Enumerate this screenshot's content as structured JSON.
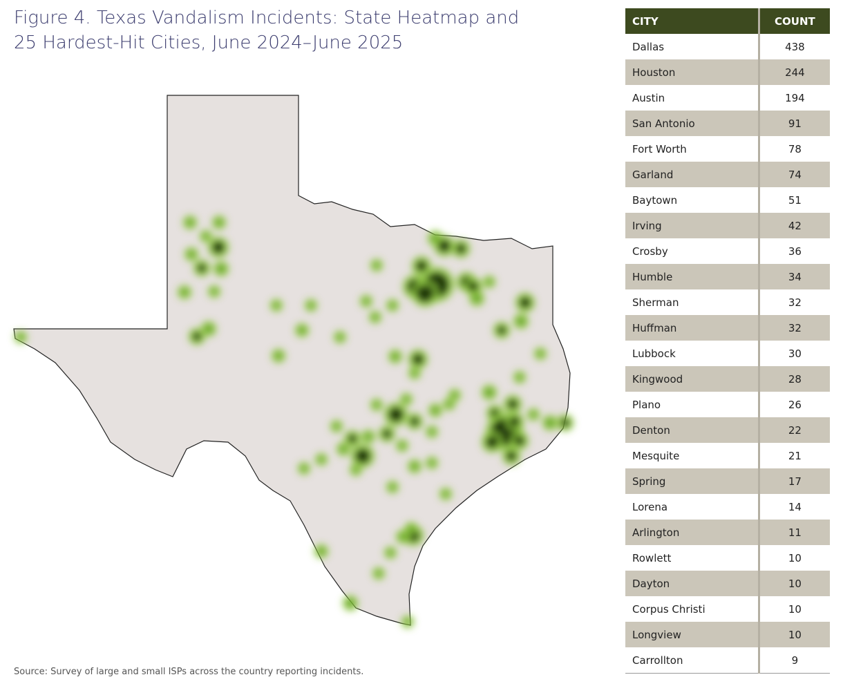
{
  "header": {
    "title_line1": "Figure 4.  Texas Vandalism Incidents: State Heatmap and",
    "title_line2": "25 Hardest-Hit Cities, June 2024–June 2025"
  },
  "source": "Source: Survey of large and small ISPs across the country reporting incidents.",
  "table": {
    "columns": [
      "CITY",
      "COUNT"
    ],
    "rows": [
      [
        "Dallas",
        438
      ],
      [
        "Houston",
        244
      ],
      [
        "Austin",
        194
      ],
      [
        "San Antonio",
        91
      ],
      [
        "Fort Worth",
        78
      ],
      [
        "Garland",
        74
      ],
      [
        "Baytown",
        51
      ],
      [
        "Irving",
        42
      ],
      [
        "Crosby",
        36
      ],
      [
        "Humble",
        34
      ],
      [
        "Sherman",
        32
      ],
      [
        "Huffman",
        32
      ],
      [
        "Lubbock",
        30
      ],
      [
        "Kingwood",
        28
      ],
      [
        "Plano",
        26
      ],
      [
        "Denton",
        22
      ],
      [
        "Mesquite",
        21
      ],
      [
        "Spring",
        17
      ],
      [
        "Lorena",
        14
      ],
      [
        "Arlington",
        11
      ],
      [
        "Rowlett",
        10
      ],
      [
        "Dayton",
        10
      ],
      [
        "Corpus Christi",
        10
      ],
      [
        "Longview",
        10
      ],
      [
        "Carrollton",
        9
      ]
    ]
  }
}
